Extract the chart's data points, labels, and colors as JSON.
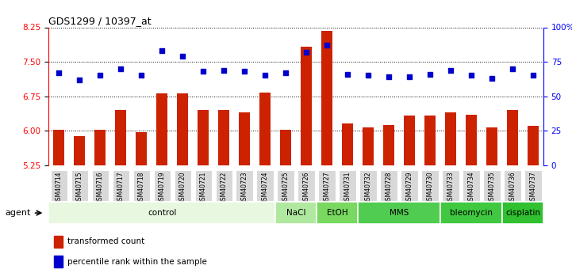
{
  "title": "GDS1299 / 10397_at",
  "samples": [
    "GSM40714",
    "GSM40715",
    "GSM40716",
    "GSM40717",
    "GSM40718",
    "GSM40719",
    "GSM40720",
    "GSM40721",
    "GSM40722",
    "GSM40723",
    "GSM40724",
    "GSM40725",
    "GSM40726",
    "GSM40727",
    "GSM40731",
    "GSM40732",
    "GSM40728",
    "GSM40729",
    "GSM40730",
    "GSM40733",
    "GSM40734",
    "GSM40735",
    "GSM40736",
    "GSM40737"
  ],
  "bar_values": [
    6.02,
    5.88,
    6.02,
    6.45,
    5.96,
    6.82,
    6.82,
    6.45,
    6.45,
    6.4,
    6.83,
    6.02,
    7.82,
    8.18,
    6.15,
    6.08,
    6.12,
    6.33,
    6.33,
    6.4,
    6.35,
    6.08,
    6.45,
    6.1
  ],
  "percentile_values": [
    67,
    62,
    65,
    70,
    65,
    83,
    79,
    68,
    69,
    68,
    65,
    67,
    82,
    87,
    66,
    65,
    64,
    64,
    66,
    69,
    65,
    63,
    70,
    65
  ],
  "groups": [
    {
      "label": "control",
      "start": 0,
      "end": 11,
      "color": "#e8f8e0"
    },
    {
      "label": "NaCl",
      "start": 11,
      "end": 13,
      "color": "#b0e8a0"
    },
    {
      "label": "EtOH",
      "start": 13,
      "end": 15,
      "color": "#78d860"
    },
    {
      "label": "MMS",
      "start": 15,
      "end": 19,
      "color": "#50cc50"
    },
    {
      "label": "bleomycin",
      "start": 19,
      "end": 22,
      "color": "#40c840"
    },
    {
      "label": "cisplatin",
      "start": 22,
      "end": 24,
      "color": "#30c030"
    }
  ],
  "ylim_left": [
    5.25,
    8.25
  ],
  "yticks_left": [
    5.25,
    6.0,
    6.75,
    7.5,
    8.25
  ],
  "yticks_right_labels": [
    "0",
    "25",
    "50",
    "75",
    "100%"
  ],
  "bar_color": "#cc2200",
  "dot_color": "#0000cc",
  "background_color": "#ffffff",
  "legend_bar": "transformed count",
  "legend_dot": "percentile rank within the sample"
}
